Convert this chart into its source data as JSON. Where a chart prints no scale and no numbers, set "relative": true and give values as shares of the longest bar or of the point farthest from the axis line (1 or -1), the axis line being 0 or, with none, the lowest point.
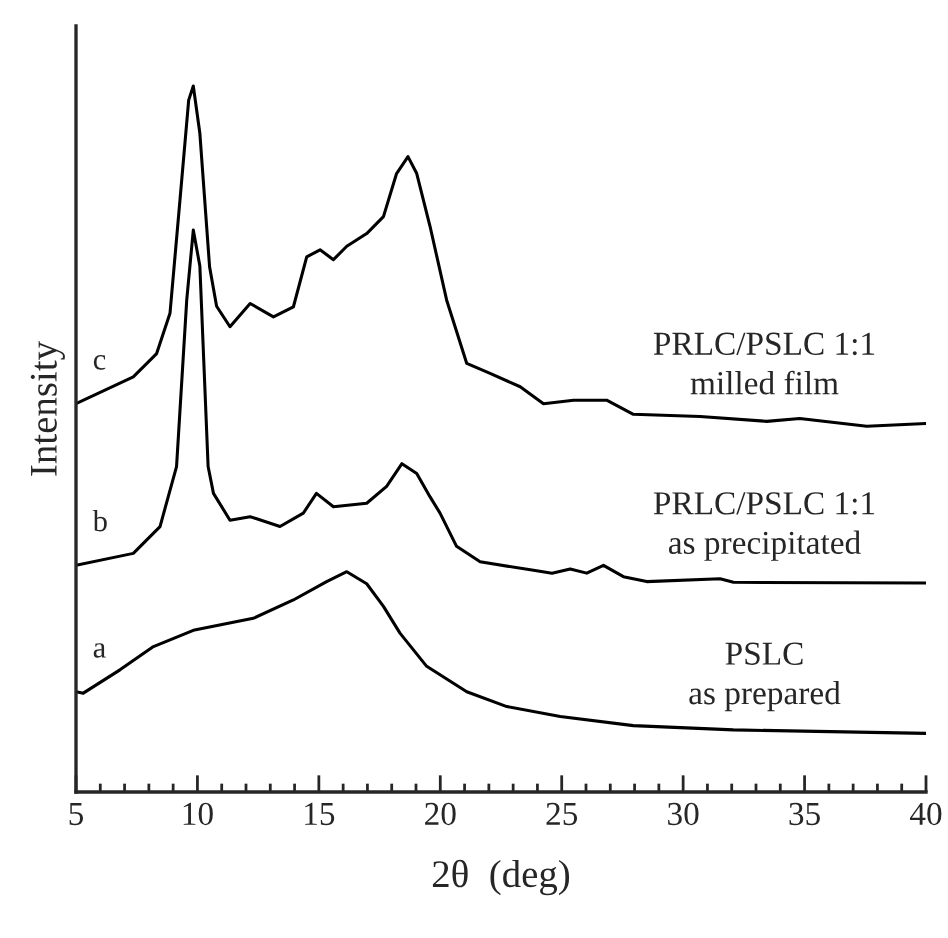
{
  "chart_data": {
    "type": "line",
    "relative": true,
    "xlabel": "2θ  (deg)",
    "ylabel": "Intensity",
    "xlim": [
      5,
      40
    ],
    "xticks": [
      5,
      10,
      15,
      20,
      25,
      30,
      35,
      40
    ],
    "grid": false,
    "legend": false,
    "marker": "none",
    "line_style": "solid",
    "series": [
      {
        "name": "c",
        "color": "#000000",
        "x": [
          5.0,
          7.36,
          8.32,
          8.87,
          9.28,
          9.64,
          9.83,
          10.1,
          10.5,
          10.79,
          11.34,
          12.17,
          13.13,
          13.95,
          14.5,
          15.05,
          15.6,
          16.15,
          16.97,
          17.66,
          18.2,
          18.67,
          19.03,
          19.58,
          20.26,
          21.09,
          22.05,
          23.29,
          24.25,
          25.49,
          26.85,
          27.95,
          30.7,
          33.44,
          34.8,
          37.56,
          40.0
        ],
        "values": [
          0.55,
          0.588,
          0.621,
          0.678,
          0.838,
          0.98,
          1,
          0.933,
          0.744,
          0.688,
          0.659,
          0.692,
          0.673,
          0.687,
          0.758,
          0.768,
          0.754,
          0.773,
          0.791,
          0.815,
          0.876,
          0.9,
          0.876,
          0.801,
          0.697,
          0.607,
          0.593,
          0.574,
          0.55,
          0.555,
          0.555,
          0.535,
          0.532,
          0.525,
          0.529,
          0.518,
          0.522
        ]
      },
      {
        "name": "b",
        "color": "#000000",
        "x": [
          5.0,
          7.36,
          8.46,
          9.14,
          9.56,
          9.83,
          10.1,
          10.44,
          10.66,
          11.34,
          12.17,
          13.4,
          14.36,
          14.9,
          15.6,
          16.97,
          17.79,
          18.42,
          19.03,
          19.58,
          19.99,
          20.67,
          21.64,
          23.84,
          24.6,
          25.35,
          26.03,
          26.72,
          27.54,
          28.5,
          31.52,
          32.07,
          40.0
        ],
        "values": [
          0.321,
          0.338,
          0.376,
          0.461,
          0.697,
          0.796,
          0.745,
          0.461,
          0.423,
          0.385,
          0.39,
          0.376,
          0.395,
          0.423,
          0.404,
          0.409,
          0.433,
          0.465,
          0.451,
          0.418,
          0.395,
          0.348,
          0.326,
          0.314,
          0.31,
          0.316,
          0.31,
          0.321,
          0.305,
          0.298,
          0.302,
          0.297,
          0.296
        ]
      },
      {
        "name": "a",
        "color": "#000000",
        "x": [
          5.0,
          5.3,
          6.81,
          8.19,
          9.83,
          12.3,
          13.95,
          15.32,
          16.15,
          16.97,
          17.66,
          18.34,
          19.44,
          21.09,
          22.74,
          24.94,
          27.95,
          32.07,
          40.0
        ],
        "values": [
          0.142,
          0.14,
          0.173,
          0.206,
          0.229,
          0.246,
          0.272,
          0.298,
          0.312,
          0.295,
          0.263,
          0.225,
          0.178,
          0.142,
          0.121,
          0.107,
          0.094,
          0.088,
          0.083
        ]
      }
    ],
    "annotations": [
      "PRLC/PSLC 1:1\nmilled film",
      "PRLC/PSLC 1:1\nas precipitated",
      "PSLC\nas prepared"
    ]
  }
}
